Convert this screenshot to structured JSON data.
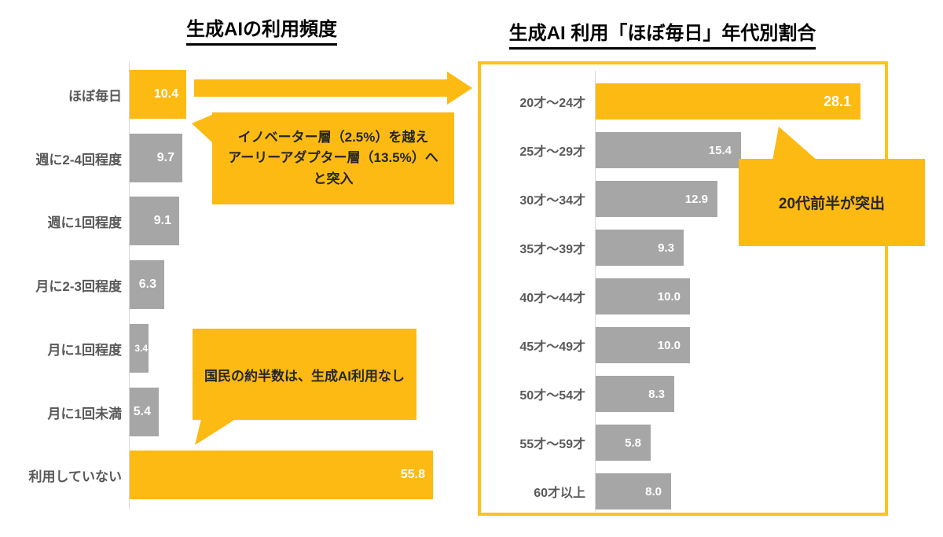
{
  "colors": {
    "accent_yellow": "#fcba12",
    "frame_yellow": "#fcc21d",
    "bar_gray": "#a6a6a6",
    "category_label_gray": "#595959",
    "value_label_white": "#ffffff",
    "axis_gray": "#d9d9d9",
    "title_black": "#000000"
  },
  "chart_data": [
    {
      "type": "bar",
      "orientation": "horizontal",
      "title": "生成AIの利用頻度",
      "categories": [
        "ほぼ毎日",
        "週に2-4回程度",
        "週に1回程度",
        "月に2-3回程度",
        "月に1回程度",
        "月に1回未満",
        "利用していない"
      ],
      "values": [
        10.4,
        9.7,
        9.1,
        6.3,
        3.4,
        5.4,
        55.8
      ],
      "highlight_indices": [
        0,
        6
      ],
      "value_label_position": "inside-right",
      "xlim": [
        0,
        60
      ],
      "grid": false,
      "legend": false
    },
    {
      "type": "bar",
      "orientation": "horizontal",
      "title": "生成AI 利用「ほぼ毎日」年代別割合",
      "categories": [
        "20才〜24才",
        "25才〜29才",
        "30才〜34才",
        "35才〜39才",
        "40才〜44才",
        "45才〜49才",
        "50才〜54才",
        "55才〜59才",
        "60才以上"
      ],
      "values": [
        28.1,
        15.4,
        12.9,
        9.3,
        10.0,
        10.0,
        8.3,
        5.8,
        8.0
      ],
      "highlight_indices": [
        0
      ],
      "value_label_position": "inside-right",
      "xlim": [
        0,
        30
      ],
      "grid": false,
      "legend": false
    }
  ],
  "annotations": {
    "bubble_innovator": {
      "lines": [
        "イノベーター層（2.5%）を越え",
        "アーリーアダプター層（13.5%）へ",
        "と突入"
      ]
    },
    "bubble_half": {
      "text": "国民の約半数は、生成AI利用なし"
    },
    "bubble_20s": {
      "text": "20代前半が突出"
    }
  }
}
